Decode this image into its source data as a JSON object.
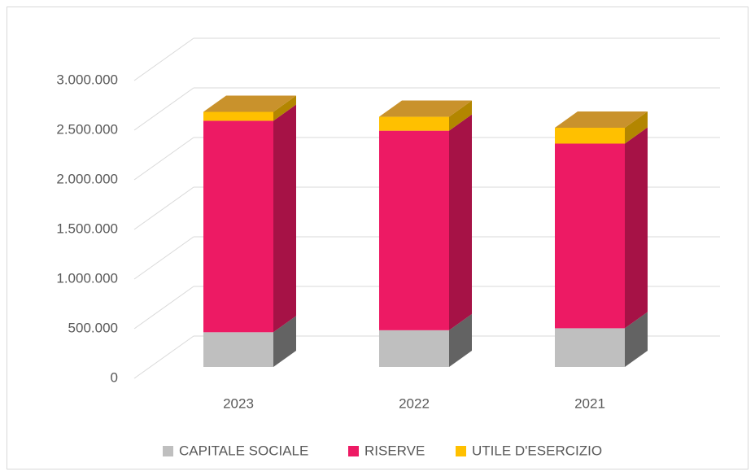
{
  "chart_data": {
    "type": "bar",
    "stacked": true,
    "three_d": true,
    "categories": [
      "2023",
      "2022",
      "2021"
    ],
    "series": [
      {
        "name": "CAPITALE SOCIALE",
        "color": "#bfbfbf",
        "values": [
          350000,
          370000,
          390000
        ]
      },
      {
        "name": "RISERVE",
        "color": "#ed1a64",
        "values": [
          2130000,
          2010000,
          1860000
        ]
      },
      {
        "name": "UTILE D'ESERCIZIO",
        "color": "#ffc000",
        "values": [
          90000,
          140000,
          160000
        ]
      }
    ],
    "ylim": [
      0,
      3000000
    ],
    "yticks": [
      0,
      {
        "value": 500000,
        "label": "500.000"
      },
      {
        "value": 1000000,
        "label": "1.000.000"
      },
      {
        "value": 1500000,
        "label": "1.500.000"
      },
      {
        "value": 2000000,
        "label": "2.000.000"
      },
      {
        "value": 2500000,
        "label": "2.500.000"
      },
      {
        "value": 3000000,
        "label": "3.000.000"
      }
    ],
    "grid": true,
    "legend": "bottom"
  }
}
